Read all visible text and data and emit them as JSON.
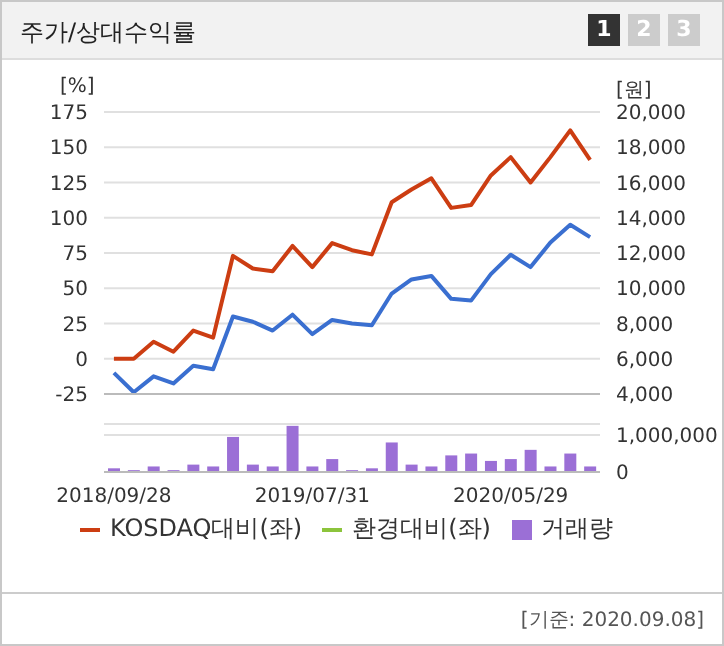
{
  "chart_data": [
    {
      "type": "line",
      "title": "주가/상대수익률",
      "ylabel": "[%]",
      "y2label": "[원]",
      "annotations": [
        "1",
        "2",
        "3"
      ],
      "categories": [
        "2018/09/28",
        null,
        null,
        null,
        null,
        null,
        null,
        null,
        null,
        null,
        "2019/07/31",
        null,
        null,
        null,
        null,
        null,
        null,
        null,
        null,
        null,
        "2020/05/29",
        null,
        null,
        null,
        null
      ],
      "series": [
        {
          "color": "#3a6fd0",
          "axis": "y2",
          "values": [
            5200,
            4100,
            5000,
            4600,
            5600,
            5400,
            8400,
            8100,
            7600,
            8500,
            7400,
            8200,
            8000,
            7900,
            9700,
            10500,
            10700,
            9400,
            9300,
            10800,
            11900,
            11200,
            12600,
            13600,
            12900
          ]
        },
        {
          "name": "KOSDAQ대비(좌)",
          "color": "#cc3d12",
          "values": [
            0,
            0,
            12,
            5,
            20,
            15,
            73,
            64,
            62,
            80,
            65,
            82,
            77,
            74,
            111,
            120,
            128,
            107,
            109,
            130,
            143,
            125,
            143,
            162,
            141
          ]
        },
        {
          "name": "환경대비(좌)",
          "color": "#8cc43c",
          "values": [
            null,
            null,
            null,
            null,
            null,
            null,
            null,
            null,
            null,
            null,
            null,
            null,
            null,
            null,
            null,
            null,
            null,
            null,
            null,
            null,
            null,
            null,
            null,
            null,
            null
          ]
        }
      ],
      "ylim": [
        -25,
        175
      ],
      "yticks": [
        -25,
        0,
        25,
        50,
        75,
        100,
        125,
        150,
        175
      ],
      "y2lim": [
        4000,
        20000
      ],
      "y2ticks": [
        {
          "value": 4000,
          "label": "4,000"
        },
        {
          "value": 6000,
          "label": "6,000"
        },
        {
          "value": 8000,
          "label": "8,000"
        },
        {
          "value": 10000,
          "label": "10,000"
        },
        {
          "value": 12000,
          "label": "12,000"
        },
        {
          "value": 14000,
          "label": "14,000"
        },
        {
          "value": 16000,
          "label": "16,000"
        },
        {
          "value": 18000,
          "label": "18,000"
        },
        {
          "value": 20000,
          "label": "20,000"
        }
      ],
      "grid": "y",
      "legend": "bottom",
      "tick_labels": "y"
    },
    {
      "type": "bar",
      "annotations": [
        "[기준: 2020.09.08]"
      ],
      "categories": [
        "2018/09/28",
        null,
        null,
        null,
        null,
        null,
        null,
        null,
        null,
        null,
        "2019/07/31",
        null,
        null,
        null,
        null,
        null,
        null,
        null,
        null,
        null,
        "2020/05/29",
        null,
        null,
        null,
        null
      ],
      "series": [
        {
          "name": "거래량",
          "color": "#9b6fd6",
          "values": [
            100000,
            50000,
            150000,
            50000,
            200000,
            150000,
            950000,
            200000,
            150000,
            1250000,
            150000,
            350000,
            50000,
            100000,
            800000,
            200000,
            150000,
            450000,
            500000,
            300000,
            350000,
            600000,
            150000,
            500000,
            150000
          ]
        }
      ],
      "ylim": [
        0,
        1300000
      ],
      "yticks": [
        0,
        {
          "value": 1000000,
          "label": "1,000,000"
        }
      ],
      "grid": "y",
      "legend": "bottom"
    }
  ]
}
